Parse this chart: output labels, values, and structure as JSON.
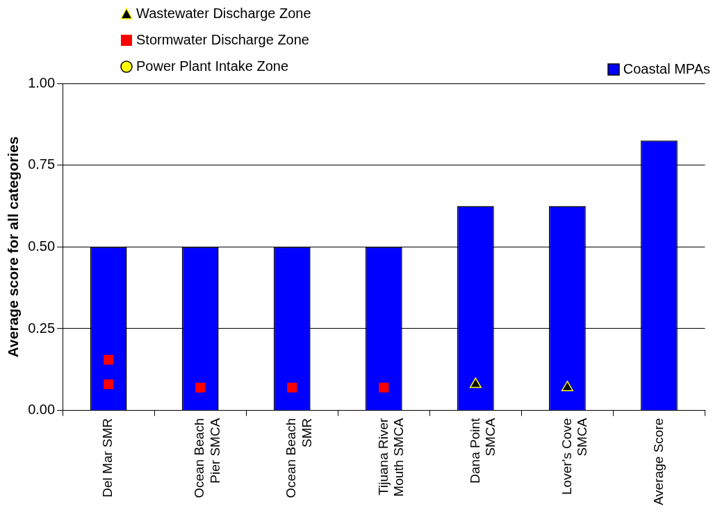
{
  "chart_data": {
    "type": "bar",
    "ylabel": "Average score for all categories",
    "categories": [
      "Del Mar SMR",
      "Ocean Beach Pier SMCA",
      "Ocean Beach SMR",
      "Tijuana River Mouth SMCA",
      "Dana Point SMCA",
      "Lover's Cove SMCA",
      "Average Score"
    ],
    "series": [
      {
        "name": "Coastal MPAs",
        "color": "#0000ff",
        "values": [
          0.5,
          0.5,
          0.5,
          0.5,
          0.625,
          0.625,
          0.825
        ]
      },
      {
        "name": "Wastewater Discharge Zone",
        "type": "scatter",
        "marker": "triangle",
        "color": "#000000",
        "x": [
          "Dana Point SMCA",
          "Lover's Cove SMCA"
        ],
        "values": [
          0.08,
          0.07
        ]
      },
      {
        "name": "Stormwater Discharge Zone",
        "type": "scatter",
        "marker": "square",
        "color": "#ff0000",
        "x": [
          "Del Mar SMR",
          "Del Mar SMR",
          "Ocean Beach Pier SMCA",
          "Ocean Beach SMR",
          "Tijuana River Mouth SMCA"
        ],
        "values": [
          0.155,
          0.08,
          0.07,
          0.07,
          0.07
        ]
      },
      {
        "name": "Power Plant Intake Zone",
        "type": "scatter",
        "marker": "circle",
        "color": "#ffff00",
        "values": [
          null,
          null,
          null,
          null,
          null,
          null,
          null
        ]
      }
    ],
    "ylim": [
      0,
      1
    ],
    "yticks": [
      {
        "value": 0,
        "label": "0.00"
      },
      {
        "value": 0.25,
        "label": "0.25"
      },
      {
        "value": 0.5,
        "label": "0.50"
      },
      {
        "value": 0.75,
        "label": "0.75"
      },
      {
        "value": 1,
        "label": "1.00"
      }
    ],
    "grid": "y",
    "legend": "top"
  }
}
